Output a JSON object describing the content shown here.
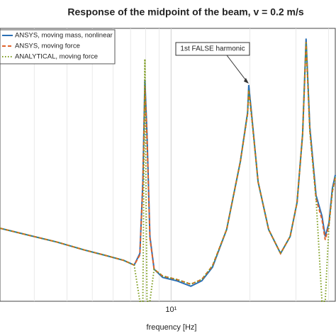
{
  "chart_data": {
    "type": "line",
    "title": "Response of the midpoint of the beam, v = 0.2 m/s",
    "xlabel": "frequency [Hz]",
    "annotation": "1st FALSE harmonic",
    "xscale": "log",
    "xlim": [
      2.22,
      42.4
    ],
    "ylim": [
      0,
      400
    ],
    "xticks": [
      {
        "value": 10,
        "label": "10¹"
      }
    ],
    "x_minor_grid": [
      3,
      4,
      5,
      6,
      7,
      8,
      9,
      20,
      30,
      40
    ],
    "grid": true,
    "legend": "upper left",
    "x": [
      2.22,
      2.84,
      3.65,
      4.68,
      5.64,
      6.59,
      7.23,
      7.6,
      7.8,
      7.94,
      8.09,
      8.3,
      8.61,
      9.29,
      10.5,
      11.9,
      13.1,
      14.4,
      16.3,
      18.4,
      19.6,
      19.8,
      20.3,
      21.5,
      23.6,
      26.2,
      28.5,
      30.3,
      31.8,
      32.8,
      33.9,
      35.8,
      37.7,
      38.8,
      40.1,
      41.3,
      42.4
    ],
    "series": [
      {
        "name": "ANSYS, moving mass, nonlinear",
        "color": "#2a6fb5",
        "style": "solid",
        "values": [
          107,
          97,
          87,
          75,
          67,
          60,
          53,
          70,
          175,
          325,
          245,
          95,
          47,
          35,
          30,
          22,
          30,
          50,
          105,
          205,
          277,
          317,
          275,
          175,
          105,
          70,
          95,
          145,
          245,
          385,
          255,
          155,
          125,
          95,
          115,
          165,
          185
        ]
      },
      {
        "name": "ANSYS, moving force",
        "color": "#e0622a",
        "style": "dashed",
        "values": [
          107,
          97,
          87,
          75,
          67,
          60,
          53,
          68,
          170,
          315,
          240,
          92,
          47,
          37,
          32,
          25,
          32,
          52,
          105,
          205,
          275,
          310,
          272,
          175,
          105,
          70,
          95,
          145,
          245,
          380,
          250,
          150,
          120,
          90,
          112,
          160,
          182
        ]
      },
      {
        "name": "ANALYTICAL, moving force",
        "color": "#7a9a1a",
        "style": "dotted",
        "values": [
          107,
          97,
          87,
          75,
          67,
          60,
          53,
          0,
          0,
          355,
          0,
          0,
          47,
          37,
          32,
          25,
          32,
          52,
          105,
          205,
          275,
          310,
          272,
          175,
          105,
          70,
          95,
          145,
          245,
          380,
          250,
          150,
          0,
          0,
          112,
          160,
          182
        ]
      }
    ]
  }
}
